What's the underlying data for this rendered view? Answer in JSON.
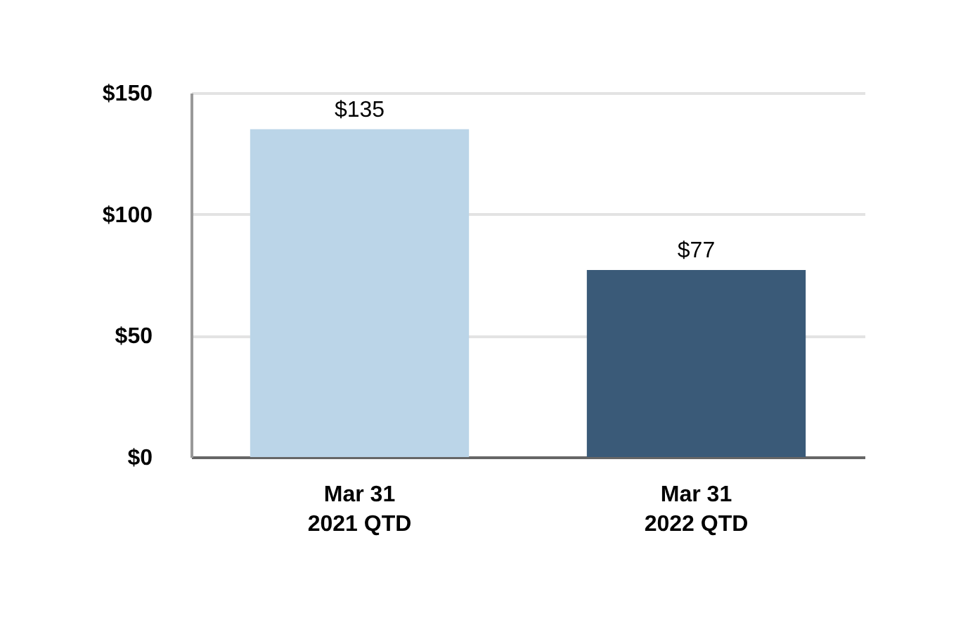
{
  "chart_data": {
    "type": "bar",
    "categories": [
      "Mar 31\n2021 QTD",
      "Mar 31\n2022 QTD"
    ],
    "values": [
      135,
      77
    ],
    "colors": [
      "#bbd5e8",
      "#3a5a78"
    ],
    "value_labels": [
      "$135",
      "$77"
    ],
    "ylim": [
      0,
      150
    ],
    "yticks": [
      {
        "value": 0,
        "label": "$0"
      },
      {
        "value": 50,
        "label": "$50"
      },
      {
        "value": 100,
        "label": "$100"
      },
      {
        "value": 150,
        "label": "$150"
      }
    ],
    "grid": "y"
  }
}
